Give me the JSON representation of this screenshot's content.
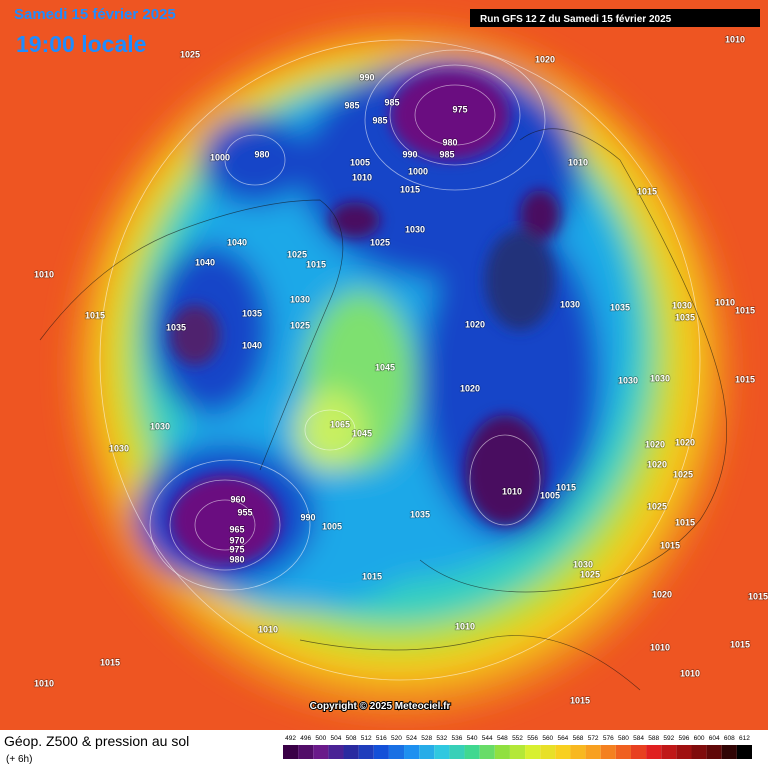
{
  "header": {
    "date": "Samedi 15 février 2025",
    "time": "19:00 locale",
    "run": "Run GFS 12 Z du Samedi 15 février 2025"
  },
  "footer": {
    "title": "Géop. Z500 & pression au sol",
    "subtitle": "(+ 6h)",
    "copyright": "Copyright © 2025 Meteociel.fr"
  },
  "scale": {
    "levels": [
      492,
      496,
      500,
      504,
      508,
      512,
      516,
      520,
      524,
      528,
      532,
      536,
      540,
      544,
      548,
      552,
      556,
      560,
      564,
      568,
      572,
      576,
      580,
      584,
      588,
      592,
      596,
      600,
      604,
      608,
      612
    ]
  },
  "pressure_labels": [
    1025,
    1020,
    1010,
    990,
    985,
    985,
    985,
    975,
    980,
    985,
    990,
    1000,
    1005,
    1010,
    1015,
    1010,
    1015,
    980,
    1000,
    1040,
    1040,
    1010,
    1015,
    1035,
    1035,
    1040,
    1030,
    1025,
    1025,
    1015,
    1030,
    1025,
    1030,
    1035,
    1020,
    1030,
    1035,
    1010,
    1015,
    1045,
    1030,
    1030,
    1065,
    1045,
    960,
    955,
    965,
    970,
    975,
    980,
    990,
    1005,
    1035,
    1010,
    1005,
    1015,
    1020,
    1020,
    1025,
    1025,
    1015,
    1015,
    1030,
    1025,
    1020,
    1015,
    1015,
    1010,
    1010,
    1015,
    1010,
    1015,
    1010,
    1015,
    1010,
    1020,
    1030,
    1030,
    1015,
    1020
  ]
}
